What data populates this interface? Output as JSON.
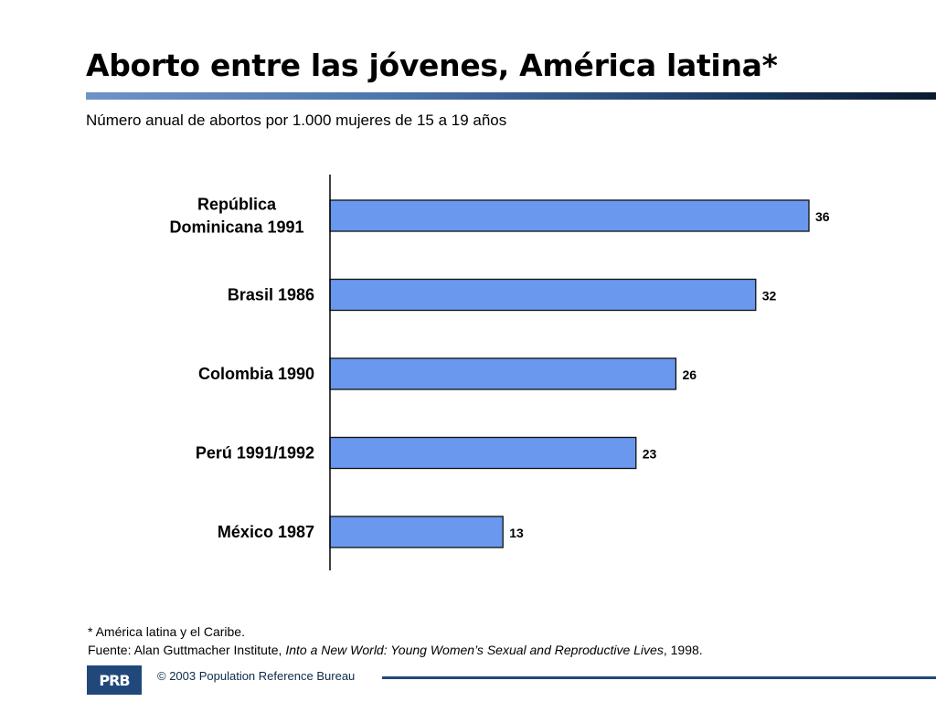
{
  "title": "Aborto entre las jóvenes, América latina*",
  "subtitle": "Número anual de abortos por 1.000 mujeres de 15 a 19 años",
  "chart_data": {
    "type": "bar",
    "orientation": "horizontal",
    "categories": [
      [
        "República",
        "Dominicana 1991"
      ],
      [
        "Brasil 1986"
      ],
      [
        "Colombia 1990"
      ],
      [
        "Perú 1991/1992"
      ],
      [
        "México 1987"
      ]
    ],
    "values": [
      36,
      32,
      26,
      23,
      13
    ],
    "value_labels": [
      "36",
      "32",
      "26",
      "23",
      "13"
    ],
    "bar_color": "#6a98ee",
    "xlim": [
      0,
      36
    ],
    "grid": false
  },
  "footnote": {
    "line1": "* América latina y el Caribe.",
    "source_prefix": "Fuente: Alan Guttmacher Institute, ",
    "source_title": "Into a New World: Young Women’s Sexual and Reproductive Lives",
    "source_suffix": ", 1998."
  },
  "footer": {
    "logo_text": "PRB",
    "copyright": "© 2003 Population Reference Bureau"
  },
  "colors": {
    "brand": "#21487a",
    "bar": "#6a98ee"
  }
}
